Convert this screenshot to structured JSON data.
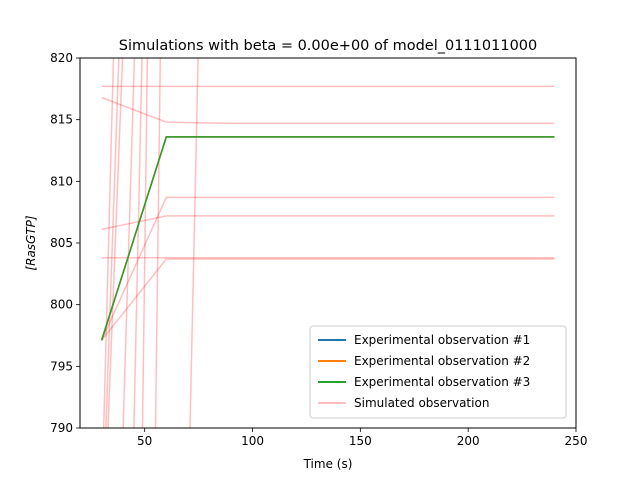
{
  "chart_data": {
    "type": "line",
    "title": "Simulations with beta = 0.00e+00 of model_0111011000",
    "xlabel": "Time (s)",
    "ylabel": "[RasGTP]",
    "xlim": [
      20,
      250
    ],
    "ylim": [
      790,
      820
    ],
    "xticks": [
      50,
      100,
      150,
      200,
      250
    ],
    "yticks": [
      790,
      795,
      800,
      805,
      810,
      815,
      820
    ],
    "grid": false,
    "legend_position": "lower right",
    "series": [
      {
        "name": "Experimental observation #1",
        "color": "#1f77b4",
        "x": [
          30,
          60,
          240
        ],
        "y": [
          797.1,
          813.6,
          813.6
        ]
      },
      {
        "name": "Experimental observation #2",
        "color": "#ff7f0e",
        "x": [
          30,
          60,
          240
        ],
        "y": [
          797.1,
          813.6,
          813.6
        ]
      },
      {
        "name": "Experimental observation #3",
        "color": "#2ca02c",
        "x": [
          30,
          60,
          240
        ],
        "y": [
          797.1,
          813.6,
          813.6
        ]
      }
    ],
    "simulated": {
      "name": "Simulated observation",
      "color": "#ff0000",
      "opacity": 0.25,
      "lines": [
        {
          "x": [
            30,
            60,
            240
          ],
          "y": [
            817.7,
            817.7,
            817.7
          ]
        },
        {
          "x": [
            30,
            60,
            90,
            240
          ],
          "y": [
            816.8,
            814.8,
            814.7,
            814.7
          ]
        },
        {
          "x": [
            30,
            60,
            240
          ],
          "y": [
            797.1,
            808.7,
            808.7
          ]
        },
        {
          "x": [
            30,
            60,
            240
          ],
          "y": [
            806.1,
            807.2,
            807.2
          ]
        },
        {
          "x": [
            30,
            60,
            240
          ],
          "y": [
            803.8,
            803.8,
            803.8
          ]
        },
        {
          "x": [
            30,
            60,
            240
          ],
          "y": [
            797.1,
            803.7,
            803.7
          ]
        },
        {
          "x": [
            31,
            37
          ],
          "y": [
            790,
            830
          ]
        },
        {
          "x": [
            32,
            40
          ],
          "y": [
            790,
            830
          ]
        },
        {
          "x": [
            33,
            42
          ],
          "y": [
            790,
            830
          ]
        },
        {
          "x": [
            40,
            47
          ],
          "y": [
            790,
            830
          ]
        },
        {
          "x": [
            45,
            50
          ],
          "y": [
            790,
            830
          ]
        },
        {
          "x": [
            49,
            52
          ],
          "y": [
            790,
            830
          ]
        },
        {
          "x": [
            55,
            58
          ],
          "y": [
            790,
            830
          ]
        },
        {
          "x": [
            71,
            76
          ],
          "y": [
            790,
            830
          ]
        }
      ]
    }
  }
}
